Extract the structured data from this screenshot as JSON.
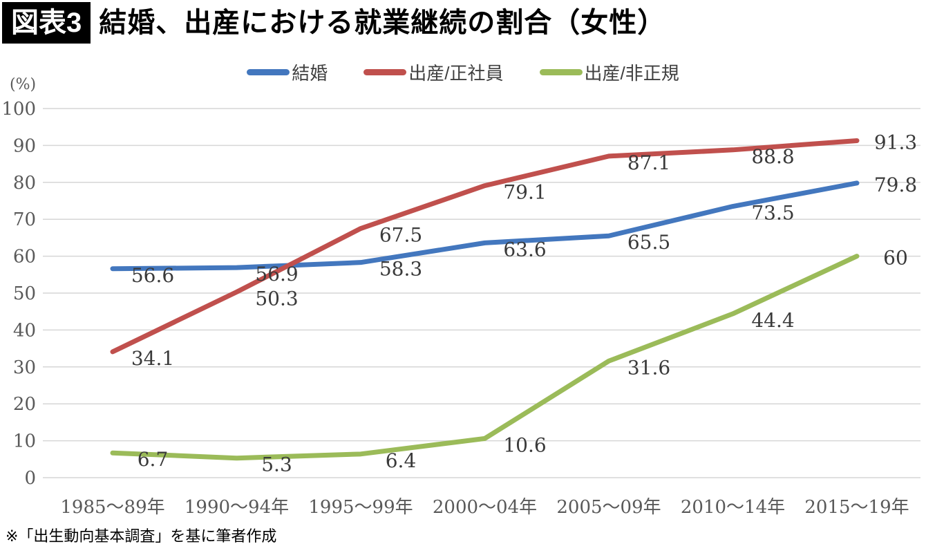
{
  "header": {
    "tag": "図表3",
    "title": "結婚、出産における就業継続の割合（女性）"
  },
  "footnote": "※「出生動向基本調査」を基に筆者作成",
  "chart_data": {
    "type": "line",
    "title": "結婚、出産における就業継続の割合（女性）",
    "ylabel": "(%)",
    "xlabel": "",
    "ylim": [
      0,
      100
    ],
    "ytick_step": 10,
    "grid": true,
    "legend_position": "top",
    "gridline_color": "#d6d6d6",
    "axis_text_color": "#595959",
    "data_label_color": "#3a3a3a",
    "categories": [
      "1985〜89年",
      "1990〜94年",
      "1995〜99年",
      "2000〜04年",
      "2005〜09年",
      "2010〜14年",
      "2015〜19年"
    ],
    "series": [
      {
        "name": "結婚",
        "color": "#4377be",
        "values": [
          56.6,
          56.9,
          58.3,
          63.6,
          65.5,
          73.5,
          79.8
        ],
        "labels": [
          "56.6",
          "56.9",
          "58.3",
          "63.6",
          "65.5",
          "73.5",
          "79.8"
        ]
      },
      {
        "name": "出産/正社員",
        "color": "#c0504d",
        "values": [
          34.1,
          50.3,
          67.5,
          79.1,
          87.1,
          88.8,
          91.3
        ],
        "labels": [
          "34.1",
          "50.3",
          "67.5",
          "79.1",
          "87.1",
          "88.8",
          "91.3"
        ]
      },
      {
        "name": "出産/非正規",
        "color": "#9bbb59",
        "values": [
          6.7,
          5.3,
          6.4,
          10.6,
          31.6,
          44.4,
          60
        ],
        "labels": [
          "6.7",
          "5.3",
          "6.4",
          "10.6",
          "31.6",
          "44.4",
          "60"
        ]
      }
    ]
  }
}
